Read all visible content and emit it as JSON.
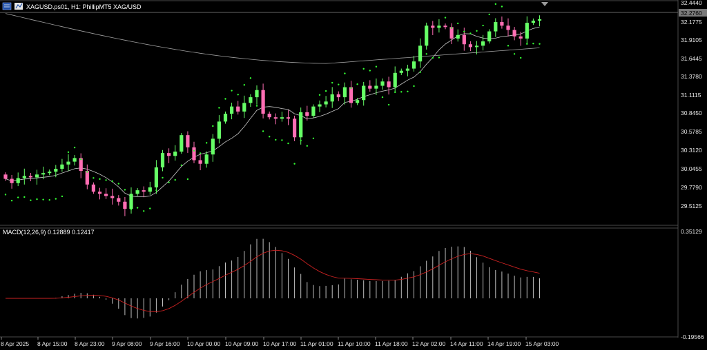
{
  "header": {
    "symbol_text": "XAGUSD.ps01, H1:  PhillipMT5 XAG/USD"
  },
  "price_axis": {
    "ticks": [
      "32.4440",
      "32.1775",
      "31.9105",
      "31.6445",
      "31.3780",
      "31.1115",
      "30.8450",
      "30.5785",
      "30.3120",
      "30.0455",
      "29.7790",
      "29.5125"
    ],
    "current_price": "32.2760"
  },
  "macd": {
    "label": "MACD(12,26,9) 0.12889 0.12417",
    "axis_top": "0.35129",
    "axis_bottom": "-0.19566"
  },
  "time_axis": {
    "ticks": [
      "8 Apr 2025",
      "8 Apr 15:00",
      "8 Apr 23:00",
      "9 Apr 08:00",
      "9 Apr 16:00",
      "10 Apr 00:00",
      "10 Apr 09:00",
      "10 Apr 17:00",
      "11 Apr 01:00",
      "11 Apr 10:00",
      "11 Apr 18:00",
      "12 Apr 02:00",
      "14 Apr 11:00",
      "14 Apr 19:00",
      "15 Apr 03:00"
    ]
  },
  "colors": {
    "bull": "#66ff66",
    "bear": "#ff6eb4",
    "psar": "#33ff33",
    "ma_fast": "#c8c8c8",
    "ma_slow": "#a0a0a0",
    "macd_hist": "#c0c0c0",
    "macd_signal": "#cc2222",
    "grid": "#4a4a4a"
  },
  "chart_data": {
    "type": "candlestick",
    "timeframe": "H1",
    "ylim": [
      29.4,
      32.5
    ],
    "closes": [
      30.04,
      29.98,
      30.05,
      30.08,
      30.06,
      30.1,
      30.12,
      30.14,
      30.18,
      30.24,
      30.28,
      30.33,
      30.15,
      29.96,
      29.86,
      29.83,
      29.8,
      29.77,
      29.72,
      29.62,
      29.83,
      29.88,
      29.86,
      29.92,
      30.2,
      30.4,
      30.36,
      30.42,
      30.65,
      30.48,
      30.3,
      30.25,
      30.38,
      30.6,
      30.84,
      30.95,
      31.05,
      30.98,
      31.1,
      31.18,
      31.28,
      30.95,
      30.9,
      30.88,
      30.9,
      30.88,
      30.62,
      30.97,
      30.92,
      31.05,
      31.08,
      31.12,
      31.22,
      31.18,
      31.32,
      31.1,
      31.14,
      31.34,
      31.3,
      31.34,
      31.4,
      31.32,
      31.52,
      31.55,
      31.58,
      31.68,
      31.9,
      32.18,
      32.15,
      32.18,
      32.16,
      32.0,
      32.05,
      31.92,
      31.88,
      31.9,
      31.96,
      32.1,
      32.23,
      32.18,
      32.12,
      32.03,
      32.0,
      32.22,
      32.25,
      32.27
    ],
    "sar_upper": {
      "from_index": 26,
      "values": [
        30.85,
        30.79,
        30.74,
        30.68,
        30.63,
        30.58
      ]
    },
    "macd_histogram_range": [
      -0.19566,
      0.35129
    ]
  }
}
